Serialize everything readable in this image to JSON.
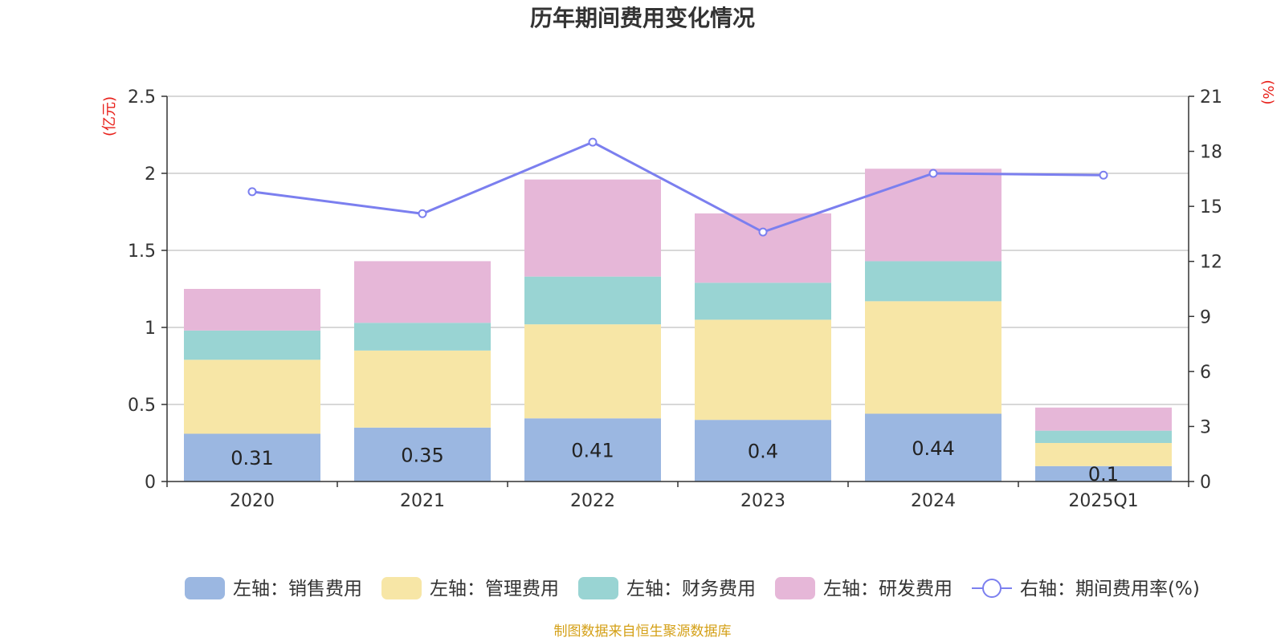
{
  "title": "历年期间费用变化情况",
  "source": "制图数据来自恒生聚源数据库",
  "colors": {
    "sales": "#9bb7e1",
    "admin": "#f7e6a6",
    "finance": "#99d4d3",
    "rd": "#e6b7d8",
    "rate_line": "#7b7fef",
    "unit_text": "#e8201a",
    "source_text": "#d4a017"
  },
  "chart_data": {
    "type": "bar",
    "stacked": true,
    "categories": [
      "2020",
      "2021",
      "2022",
      "2023",
      "2024",
      "2025Q1"
    ],
    "left_axis": {
      "unit": "(亿元)",
      "ylim": [
        0,
        2.5
      ],
      "ticks": [
        "0",
        "0.5",
        "1",
        "1.5",
        "2",
        "2.5"
      ]
    },
    "right_axis": {
      "unit": "(%)",
      "ylim": [
        0,
        21
      ],
      "ticks": [
        "0",
        "3",
        "6",
        "9",
        "12",
        "15",
        "18",
        "21"
      ]
    },
    "series": [
      {
        "name": "左轴：销售费用",
        "key": "sales",
        "axis": "left",
        "type": "bar",
        "values": [
          0.31,
          0.35,
          0.41,
          0.4,
          0.44,
          0.1
        ],
        "labels": [
          "0.31",
          "0.35",
          "0.41",
          "0.4",
          "0.44",
          "0.1"
        ]
      },
      {
        "name": "左轴：管理费用",
        "key": "admin",
        "axis": "left",
        "type": "bar",
        "values": [
          0.48,
          0.5,
          0.61,
          0.65,
          0.73,
          0.15
        ]
      },
      {
        "name": "左轴：财务费用",
        "key": "finance",
        "axis": "left",
        "type": "bar",
        "values": [
          0.19,
          0.18,
          0.31,
          0.24,
          0.26,
          0.08
        ]
      },
      {
        "name": "左轴：研发费用",
        "key": "rd",
        "axis": "left",
        "type": "bar",
        "values": [
          0.27,
          0.4,
          0.63,
          0.45,
          0.6,
          0.15
        ]
      },
      {
        "name": "右轴：期间费用率(%)",
        "key": "rate_line",
        "axis": "right",
        "type": "line",
        "values": [
          15.8,
          14.6,
          18.5,
          13.6,
          16.8,
          16.7
        ]
      }
    ],
    "grid": true,
    "legend": "bottom-center"
  }
}
